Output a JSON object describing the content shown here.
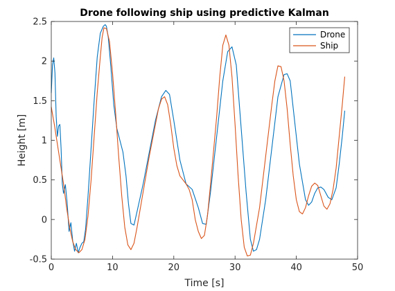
{
  "chart_data": {
    "type": "line",
    "title": "Drone following ship using predictive Kalman",
    "xlabel": "Time [s]",
    "ylabel": "Height [m]",
    "xlim": [
      0,
      50
    ],
    "ylim": [
      -0.5,
      2.5
    ],
    "xticks": [
      0,
      10,
      20,
      30,
      40,
      50
    ],
    "xtick_labels": [
      "0",
      "10",
      "20",
      "30",
      "40",
      "50"
    ],
    "yticks": [
      -0.5,
      0,
      0.5,
      1,
      1.5,
      2,
      2.5
    ],
    "ytick_labels": [
      "-0.5",
      "0",
      "0.5",
      "1",
      "1.5",
      "2",
      "2.5"
    ],
    "grid": false,
    "legend_position": "top-right",
    "series": [
      {
        "name": "Drone",
        "color": "#0072BD",
        "x": [
          0,
          0.2,
          0.4,
          0.6,
          0.8,
          1.0,
          1.2,
          1.4,
          1.6,
          1.8,
          2.0,
          2.3,
          2.6,
          2.9,
          3.2,
          3.5,
          3.8,
          4.1,
          4.4,
          4.7,
          5.0,
          5.3,
          5.6,
          6.0,
          6.5,
          7.0,
          7.5,
          8.0,
          8.5,
          8.8,
          9.0,
          9.3,
          9.7,
          10.2,
          10.7,
          11.2,
          11.7,
          12.2,
          12.6,
          13.0,
          13.5,
          14.0,
          15.0,
          16.0,
          17.0,
          18.0,
          18.7,
          19.3,
          20.0,
          21.0,
          22.0,
          23.0,
          24.0,
          24.7,
          25.3,
          26.0,
          27.0,
          28.0,
          28.8,
          29.5,
          30.2,
          31.0,
          31.8,
          32.5,
          33.0,
          33.5,
          34.0,
          35.0,
          36.0,
          37.0,
          38.0,
          38.5,
          39.0,
          39.5,
          40.5,
          41.5,
          42.0,
          42.5,
          43.0,
          43.5,
          44.0,
          44.5,
          45.2,
          45.8,
          46.5,
          47.0,
          47.5,
          47.9
        ],
        "y": [
          1.6,
          1.95,
          2.04,
          1.85,
          1.3,
          1.05,
          1.18,
          1.2,
          0.9,
          0.45,
          0.33,
          0.44,
          0.2,
          -0.15,
          -0.04,
          -0.27,
          -0.4,
          -0.3,
          -0.42,
          -0.35,
          -0.3,
          -0.28,
          -0.12,
          0.3,
          0.9,
          1.5,
          2.05,
          2.35,
          2.44,
          2.46,
          2.44,
          2.3,
          1.95,
          1.45,
          1.15,
          1.0,
          0.85,
          0.55,
          0.2,
          -0.05,
          -0.07,
          0.1,
          0.45,
          0.85,
          1.25,
          1.55,
          1.63,
          1.58,
          1.25,
          0.75,
          0.45,
          0.38,
          0.15,
          -0.05,
          -0.06,
          0.35,
          1.05,
          1.75,
          2.12,
          2.18,
          1.95,
          1.15,
          0.35,
          -0.25,
          -0.4,
          -0.38,
          -0.25,
          0.25,
          0.9,
          1.55,
          1.83,
          1.84,
          1.75,
          1.4,
          0.7,
          0.25,
          0.18,
          0.22,
          0.33,
          0.4,
          0.41,
          0.38,
          0.28,
          0.25,
          0.4,
          0.7,
          1.05,
          1.37
        ]
      },
      {
        "name": "Ship",
        "color": "#D95319",
        "x": [
          0,
          0.5,
          1.0,
          1.5,
          2.0,
          2.5,
          3.0,
          3.5,
          4.0,
          4.5,
          5.0,
          5.5,
          6.0,
          6.5,
          7.0,
          7.5,
          8.0,
          8.3,
          8.6,
          9.0,
          9.5,
          10.0,
          10.5,
          11.0,
          11.5,
          12.0,
          12.5,
          13.0,
          13.5,
          14.0,
          15.0,
          16.0,
          17.0,
          17.5,
          18.0,
          18.5,
          19.0,
          19.5,
          20.0,
          20.5,
          21.0,
          22.0,
          22.5,
          23.0,
          23.5,
          24.0,
          24.5,
          25.0,
          25.5,
          26.0,
          27.0,
          27.5,
          28.0,
          28.5,
          29.0,
          29.5,
          30.0,
          30.5,
          31.0,
          31.5,
          32.0,
          32.5,
          33.0,
          34.0,
          35.0,
          36.0,
          36.5,
          37.0,
          37.5,
          38.0,
          38.5,
          39.0,
          39.5,
          40.0,
          40.5,
          41.0,
          41.5,
          42.0,
          42.5,
          43.0,
          43.5,
          44.0,
          44.5,
          45.0,
          45.5,
          46.0,
          46.5,
          47.0,
          47.5,
          47.9
        ],
        "y": [
          1.42,
          1.2,
          0.95,
          0.7,
          0.45,
          0.15,
          -0.1,
          -0.28,
          -0.38,
          -0.42,
          -0.38,
          -0.25,
          0.05,
          0.5,
          1.05,
          1.6,
          2.05,
          2.3,
          2.42,
          2.41,
          2.25,
          1.85,
          1.35,
          0.8,
          0.3,
          -0.1,
          -0.32,
          -0.38,
          -0.3,
          -0.1,
          0.35,
          0.8,
          1.2,
          1.4,
          1.52,
          1.55,
          1.45,
          1.2,
          0.9,
          0.68,
          0.55,
          0.45,
          0.38,
          0.25,
          0.0,
          -0.15,
          -0.24,
          -0.2,
          0.05,
          0.45,
          1.3,
          1.8,
          2.2,
          2.33,
          2.2,
          1.8,
          1.2,
          0.55,
          0.0,
          -0.35,
          -0.46,
          -0.45,
          -0.3,
          0.15,
          0.8,
          1.45,
          1.75,
          1.94,
          1.93,
          1.75,
          1.4,
          0.95,
          0.55,
          0.25,
          0.1,
          0.07,
          0.15,
          0.3,
          0.42,
          0.46,
          0.43,
          0.3,
          0.17,
          0.13,
          0.2,
          0.38,
          0.65,
          1.05,
          1.45,
          1.8
        ]
      }
    ]
  }
}
